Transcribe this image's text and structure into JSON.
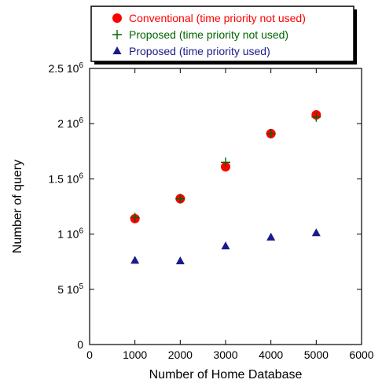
{
  "chart_data": {
    "type": "scatter",
    "xlabel": "Number of Home Database",
    "ylabel": "Number of query",
    "xlim": [
      0,
      6000
    ],
    "ylim": [
      0,
      2500000
    ],
    "x_ticks": [
      0,
      1000,
      2000,
      3000,
      4000,
      5000,
      6000
    ],
    "x_tick_labels": [
      "0",
      "1000",
      "2000",
      "3000",
      "4000",
      "5000",
      "6000"
    ],
    "y_ticks": [
      0,
      500000,
      1000000,
      1500000,
      2000000,
      2500000
    ],
    "y_tick_labels": [
      {
        "base": "0",
        "exp": ""
      },
      {
        "base": "5 10",
        "exp": "5"
      },
      {
        "base": "1 10",
        "exp": "6"
      },
      {
        "base": "1.5 10",
        "exp": "6"
      },
      {
        "base": "2 10",
        "exp": "6"
      },
      {
        "base": "2.5 10",
        "exp": "6"
      }
    ],
    "grid": false,
    "legend_position": "top",
    "series": [
      {
        "name": "Conventional (time priority not used)",
        "marker": "circle",
        "color": "#ff0000",
        "x": [
          1000,
          2000,
          3000,
          4000,
          5000
        ],
        "y": [
          1140000,
          1320000,
          1610000,
          1910000,
          2080000
        ]
      },
      {
        "name": "Proposed (time priority not used)",
        "marker": "plus",
        "color": "#006400",
        "x": [
          1000,
          2000,
          3000,
          4000,
          5000
        ],
        "y": [
          1150000,
          1320000,
          1650000,
          1910000,
          2060000
        ]
      },
      {
        "name": "Proposed (time priority used)",
        "marker": "triangle",
        "color": "#1a1a8a",
        "x": [
          1000,
          2000,
          3000,
          4000,
          5000
        ],
        "y": [
          760000,
          755000,
          890000,
          970000,
          1010000
        ]
      }
    ]
  }
}
